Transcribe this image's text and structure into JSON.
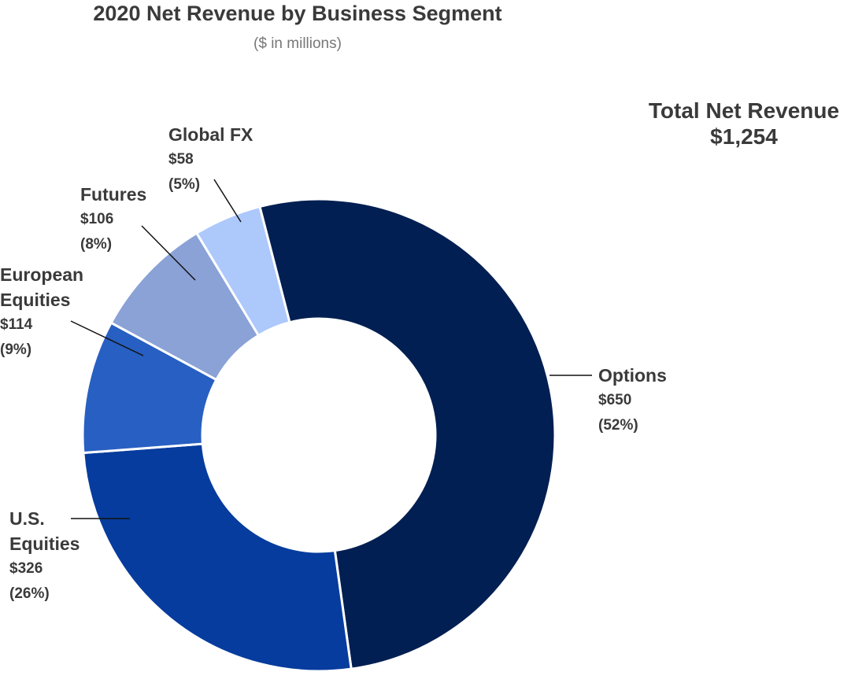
{
  "header": {
    "title": "2020 Net Revenue by Business Segment",
    "subtitle": "($ in millions)"
  },
  "total": {
    "label": "Total Net Revenue",
    "value": "$1,254"
  },
  "chart_data": {
    "type": "pie",
    "title": "2020 Net Revenue by Business Segment",
    "subtitle": "($ in millions)",
    "donut": true,
    "series": [
      {
        "values": [
          650,
          326,
          114,
          106,
          58
        ]
      }
    ],
    "slices": [
      {
        "name": "Options",
        "value": 650,
        "value_label": "$650",
        "pct_label": "(52%)",
        "color": "#011f52"
      },
      {
        "name": "U.S. Equities",
        "value": 326,
        "value_label": "$326",
        "pct_label": "(26%)",
        "color": "#063c9e"
      },
      {
        "name": "European Equities",
        "value": 114,
        "value_label": "$114",
        "pct_label": "(9%)",
        "color": "#285fc2"
      },
      {
        "name": "Futures",
        "value": 106,
        "value_label": "$106",
        "pct_label": "(8%)",
        "color": "#8aa2d6"
      },
      {
        "name": "Global FX",
        "value": 58,
        "value_label": "$58",
        "pct_label": "(5%)",
        "color": "#adc8fb"
      }
    ],
    "labels": {
      "options": [
        "Options"
      ],
      "us_equities": [
        "U.S.",
        "Equities"
      ],
      "european_equities": [
        "European",
        "Equities"
      ],
      "futures": [
        "Futures"
      ],
      "global_fx": [
        "Global FX"
      ]
    }
  }
}
